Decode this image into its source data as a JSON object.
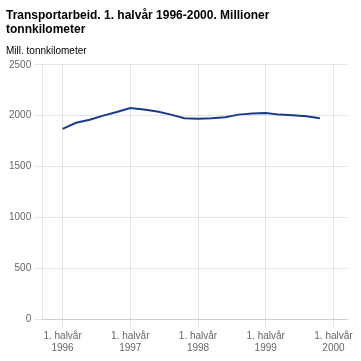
{
  "chart_data": {
    "type": "line",
    "title": "Transportarbeid. 1. halvår 1996-2000. Millioner\ntonnkilometer",
    "ylabel": "Mill. tonnkilometer",
    "x": [
      0.0,
      0.2,
      0.4,
      0.6,
      0.8,
      1.0,
      1.2,
      1.4,
      1.6,
      1.8,
      2.0,
      2.2,
      2.4,
      2.6,
      2.8,
      3.0,
      3.2,
      3.4,
      3.6,
      3.8
    ],
    "values": [
      1870,
      1930,
      1960,
      2000,
      2035,
      2075,
      2060,
      2040,
      2010,
      1975,
      1970,
      1975,
      1985,
      2010,
      2020,
      2025,
      2010,
      2005,
      1995,
      1975
    ],
    "color": "#1a3a8c",
    "xlim": [
      -0.3,
      4.2
    ],
    "xticks": [
      {
        "value": 0,
        "label": "1. halvår\n1996"
      },
      {
        "value": 1,
        "label": "1. halvår\n1997"
      },
      {
        "value": 2,
        "label": "1. halvår\n1998"
      },
      {
        "value": 3,
        "label": "1. halvår\n1999"
      },
      {
        "value": 4,
        "label": "1. halvår\n2000"
      }
    ],
    "ylim": [
      0,
      2500
    ],
    "yticks": [
      0,
      500,
      1000,
      1500,
      2000,
      2500
    ],
    "grid": true
  }
}
